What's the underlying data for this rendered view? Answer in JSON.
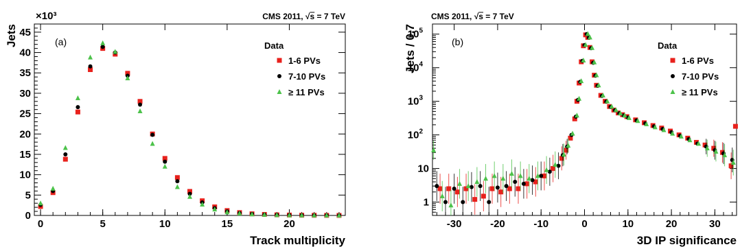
{
  "chart_data": [
    {
      "type": "scatter",
      "panel_label": "(a)",
      "header": "CMS 2011, √s = 7 TeV",
      "xlabel": "Track multiplicity",
      "ylabel": "Jets",
      "y_multiplier": "×10³",
      "xlim": [
        -0.5,
        24.5
      ],
      "ylim": [
        0,
        47
      ],
      "yscale": "linear",
      "x_ticks": [
        0,
        5,
        10,
        15,
        20
      ],
      "y_ticks": [
        0,
        5,
        10,
        15,
        20,
        25,
        30,
        35,
        40,
        45
      ],
      "legend_title": "Data",
      "legend_position": "top-right",
      "series": [
        {
          "name": "1-6 PVs",
          "color": "#e8211c",
          "marker": "square",
          "x": [
            0,
            1,
            2,
            3,
            4,
            5,
            6,
            7,
            8,
            9,
            10,
            11,
            12,
            13,
            14,
            15,
            16,
            17,
            18,
            19,
            20,
            21,
            22,
            23,
            24
          ],
          "y": [
            2.2,
            5.6,
            13.8,
            25.4,
            35.8,
            41.0,
            39.6,
            34.9,
            28.0,
            20.0,
            14.0,
            9.3,
            5.9,
            3.6,
            2.1,
            1.2,
            0.7,
            0.4,
            0.25,
            0.15,
            0.1,
            0.06,
            0.04,
            0.02,
            0.01
          ]
        },
        {
          "name": "7-10 PVs",
          "color": "#000000",
          "marker": "circle",
          "x": [
            0,
            1,
            2,
            3,
            4,
            5,
            6,
            7,
            8,
            9,
            10,
            11,
            12,
            13,
            14,
            15,
            16,
            17,
            18,
            19,
            20,
            21,
            22,
            23,
            24
          ],
          "y": [
            2.6,
            6.0,
            15.0,
            26.6,
            36.6,
            41.4,
            40.0,
            34.3,
            27.2,
            19.8,
            13.2,
            8.4,
            5.3,
            3.2,
            1.8,
            1.0,
            0.6,
            0.35,
            0.2,
            0.12,
            0.08,
            0.05,
            0.03,
            0.02,
            0.01
          ]
        },
        {
          "name": "≥ 11 PVs",
          "color": "#4cc24a",
          "marker": "triangle",
          "x": [
            0,
            1,
            2,
            3,
            4,
            5,
            6,
            7,
            8,
            9,
            10,
            11,
            12,
            13,
            14,
            15,
            16,
            17,
            18,
            19,
            20,
            21,
            22,
            23,
            24
          ],
          "y": [
            3.0,
            6.6,
            16.6,
            28.8,
            38.8,
            42.3,
            40.2,
            33.7,
            25.6,
            17.6,
            12.0,
            7.0,
            4.6,
            2.7,
            1.5,
            0.8,
            0.5,
            0.3,
            0.18,
            0.1,
            0.07,
            0.04,
            0.03,
            0.02,
            0.01
          ]
        }
      ]
    },
    {
      "type": "scatter",
      "panel_label": "(b)",
      "header": "CMS 2011, √s = 7 TeV",
      "xlabel": "3D IP significance",
      "ylabel": "Jets / 0.7",
      "xlim": [
        -35,
        35
      ],
      "ylim": [
        0.4,
        200000
      ],
      "yscale": "log",
      "x_ticks": [
        -30,
        -20,
        -10,
        0,
        10,
        20,
        30
      ],
      "y_ticks": [
        {
          "value": 1,
          "label": "1"
        },
        {
          "value": 10,
          "label": "10"
        },
        {
          "value": 100,
          "label": "10",
          "exponent": "2"
        },
        {
          "value": 1000,
          "label": "10",
          "exponent": "3"
        },
        {
          "value": 10000,
          "label": "10",
          "exponent": "4"
        },
        {
          "value": 100000,
          "label": "10",
          "exponent": "5"
        }
      ],
      "legend_title": "Data",
      "legend_position": "top-right",
      "series": [
        {
          "name": "1-6 PVs",
          "color": "#e8211c",
          "marker": "square",
          "x": [
            -35,
            -33,
            -31,
            -29,
            -27,
            -25,
            -23,
            -21,
            -19,
            -17,
            -15,
            -13,
            -11,
            -9,
            -7,
            -5,
            -4,
            -3,
            -2,
            -1.5,
            -1,
            -0.5,
            0,
            0.5,
            1,
            1.5,
            2,
            2.5,
            3,
            4,
            5,
            6,
            7,
            8,
            9,
            10,
            12,
            14,
            16,
            18,
            20,
            22,
            24,
            26,
            28,
            30,
            32,
            34,
            35
          ],
          "y": [
            12,
            2.5,
            2.5,
            2,
            2.5,
            1.2,
            1.5,
            2.5,
            2,
            2.5,
            2.5,
            3.5,
            4,
            6,
            10,
            20,
            35,
            80,
            300,
            1000,
            3500,
            15000,
            45000,
            95000,
            80000,
            40000,
            15000,
            6000,
            3000,
            1500,
            1000,
            700,
            550,
            450,
            400,
            350,
            280,
            230,
            190,
            160,
            130,
            100,
            80,
            60,
            50,
            40,
            30,
            12,
            180
          ]
        },
        {
          "name": "7-10 PVs",
          "color": "#000000",
          "marker": "circle",
          "x": [
            -34,
            -32,
            -30,
            -28,
            -26,
            -24,
            -22,
            -20,
            -18,
            -16,
            -14,
            -12,
            -10,
            -8,
            -6,
            -5,
            -4,
            -3,
            -2,
            -1.5,
            -1,
            -0.5,
            0,
            0.5,
            1,
            1.5,
            2,
            2.5,
            3,
            4,
            5,
            6,
            7,
            8,
            9,
            10,
            12,
            14,
            16,
            18,
            20,
            22,
            24,
            26,
            28,
            30,
            32,
            34
          ],
          "y": [
            3,
            1,
            2.5,
            1,
            2.8,
            3,
            1,
            2.7,
            3,
            4,
            3.5,
            4.5,
            6,
            8,
            12,
            25,
            45,
            100,
            350,
            1100,
            3800,
            16000,
            47000,
            100000,
            78000,
            38000,
            14000,
            5800,
            2900,
            1450,
            980,
            680,
            540,
            440,
            380,
            330,
            270,
            220,
            180,
            150,
            120,
            95,
            75,
            55,
            45,
            35,
            28,
            18
          ]
        },
        {
          "name": "≥ 11 PVs",
          "color": "#4cc24a",
          "marker": "triangle",
          "x": [
            -35,
            -33,
            -31,
            -29,
            -27,
            -25,
            -23,
            -21,
            -19,
            -17,
            -15,
            -13,
            -11,
            -9,
            -7,
            -5,
            -4,
            -3,
            -2,
            -1.5,
            -1,
            -0.5,
            0,
            0.5,
            1,
            1.5,
            2,
            2.5,
            3,
            4,
            5,
            6,
            7,
            8,
            9,
            10,
            12,
            14,
            16,
            18,
            20,
            22,
            24,
            26,
            28,
            30,
            32,
            34
          ],
          "y": [
            35,
            1.5,
            0.8,
            3.5,
            3,
            4,
            5,
            6,
            5,
            7,
            6,
            5,
            6,
            9,
            13,
            26,
            48,
            110,
            380,
            1200,
            4000,
            16500,
            48000,
            102000,
            80000,
            39000,
            14500,
            6000,
            3000,
            1500,
            1000,
            700,
            550,
            440,
            380,
            320,
            260,
            210,
            170,
            140,
            110,
            90,
            70,
            55,
            40,
            32,
            25,
            15
          ]
        }
      ]
    }
  ]
}
